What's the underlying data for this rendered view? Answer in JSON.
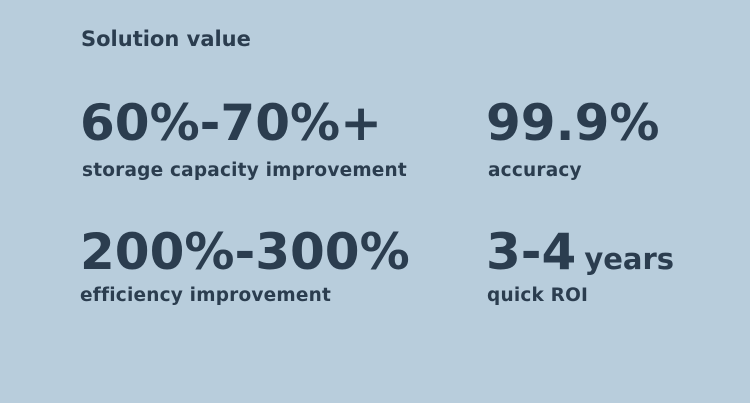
{
  "title": "Solution value",
  "stats": [
    {
      "value": "60%-70%+",
      "label": "storage capacity improvement"
    },
    {
      "value": "99.9%",
      "label": "accuracy"
    },
    {
      "value": "200%-300%",
      "label": "efficiency improvement"
    },
    {
      "value": "3-4",
      "unit": "years",
      "label": "quick ROI"
    }
  ],
  "colors": {
    "background": "#b8cddc",
    "text": "#2b3d4f"
  }
}
